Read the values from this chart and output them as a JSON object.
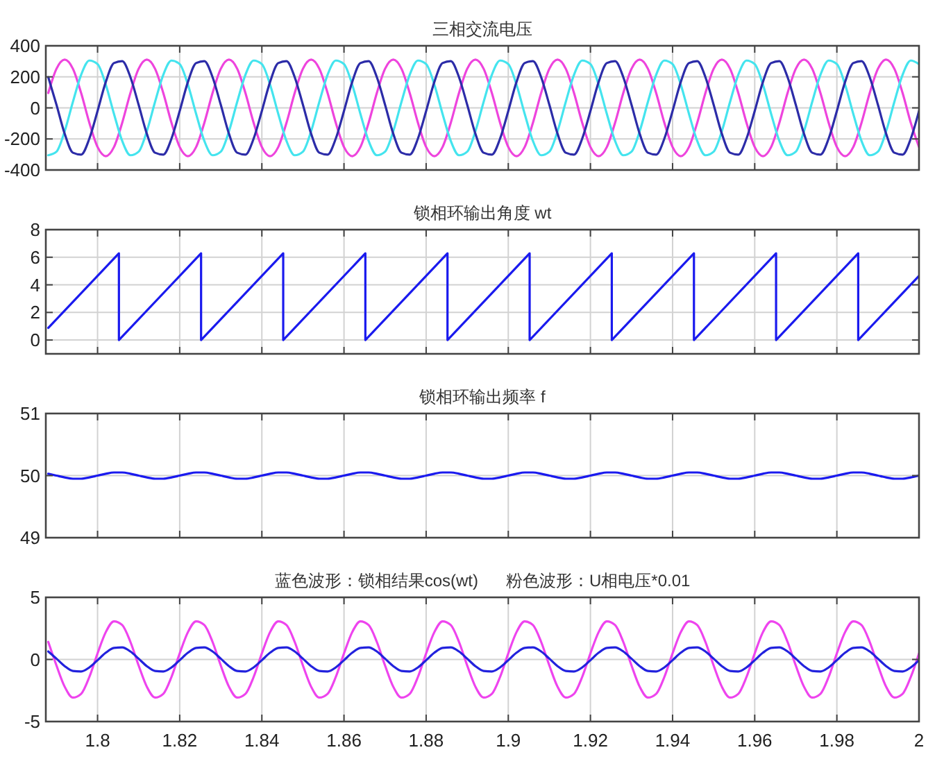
{
  "chart_data": [
    {
      "type": "line",
      "title": "三相交流电压",
      "xlim": [
        1.7874,
        2
      ],
      "xticks": [
        1.8,
        1.82,
        1.84,
        1.86,
        1.88,
        1.9,
        1.92,
        1.94,
        1.96,
        1.98,
        2
      ],
      "ylim": [
        -400,
        400
      ],
      "yticks": [
        -400,
        -200,
        0,
        200,
        400
      ],
      "grid": true,
      "tick_labels": "y",
      "x": [
        1.788,
        1.79,
        1.792,
        1.794,
        1.796,
        1.798,
        1.8,
        1.802,
        1.804,
        1.806,
        1.808,
        1.81,
        1.812,
        1.814,
        1.816,
        1.818,
        1.82,
        1.822,
        1.824,
        1.826,
        1.828,
        1.83,
        1.832,
        1.834,
        1.836,
        1.838,
        1.84,
        1.842,
        1.844,
        1.846,
        1.848,
        1.85,
        1.852,
        1.854,
        1.856,
        1.858,
        1.86,
        1.862,
        1.864,
        1.866,
        1.868,
        1.87,
        1.872,
        1.874,
        1.876,
        1.878,
        1.88,
        1.882,
        1.884,
        1.886,
        1.888,
        1.89,
        1.892,
        1.894,
        1.896,
        1.898,
        1.9,
        1.902,
        1.904,
        1.906,
        1.908,
        1.91,
        1.912,
        1.914,
        1.916,
        1.918,
        1.92,
        1.922,
        1.924,
        1.926,
        1.928,
        1.93,
        1.932,
        1.934,
        1.936,
        1.938,
        1.94,
        1.942,
        1.944,
        1.946,
        1.948,
        1.95,
        1.952,
        1.954,
        1.956,
        1.958,
        1.96,
        1.962,
        1.964,
        1.966,
        1.968,
        1.97,
        1.972,
        1.974,
        1.976,
        1.978,
        1.98,
        1.982,
        1.984,
        1.986,
        1.988,
        1.99,
        1.992,
        1.994,
        1.996,
        1.998,
        2.0
      ],
      "series": [
        {
          "color": "#ee44dd",
          "values": [
            96,
            252,
            311,
            252,
            96,
            -96,
            -252,
            -311,
            -252,
            -96,
            96,
            252,
            311,
            252,
            96,
            -96,
            -252,
            -311,
            -252,
            -96,
            96,
            252,
            311,
            252,
            96,
            -96,
            -252,
            -311,
            -252,
            -96,
            96,
            252,
            311,
            252,
            96,
            -96,
            -252,
            -311,
            -252,
            -96,
            96,
            252,
            311,
            252,
            96,
            -96,
            -252,
            -311,
            -252,
            -96,
            96,
            252,
            311,
            252,
            96,
            -96,
            -252,
            -311,
            -252,
            -96,
            96,
            252,
            311,
            252,
            96,
            -96,
            -252,
            -311,
            -252,
            -96,
            96,
            252,
            311,
            252,
            96,
            -96,
            -252,
            -311,
            -252,
            -96,
            96,
            252,
            311,
            252,
            96,
            -96,
            -252,
            -311,
            -252,
            -96,
            96,
            252,
            311,
            252,
            96,
            -96,
            -252,
            -311,
            -252,
            -96,
            96,
            252,
            311,
            252,
            96,
            -96,
            -252
          ]
        },
        {
          "color": "#44e4ee",
          "values": [
            -305,
            -282,
            -150,
            39,
            213,
            305,
            282,
            150,
            -39,
            -213,
            -305,
            -282,
            -150,
            39,
            213,
            305,
            282,
            150,
            -39,
            -213,
            -305,
            -282,
            -150,
            39,
            213,
            305,
            282,
            150,
            -39,
            -213,
            -305,
            -282,
            -150,
            39,
            213,
            305,
            282,
            150,
            -39,
            -213,
            -305,
            -282,
            -150,
            39,
            213,
            305,
            282,
            150,
            -39,
            -213,
            -305,
            -282,
            -150,
            39,
            213,
            305,
            282,
            150,
            -39,
            -213,
            -305,
            -282,
            -150,
            39,
            213,
            305,
            282,
            150,
            -39,
            -213,
            -305,
            -282,
            -150,
            39,
            213,
            305,
            282,
            150,
            -39,
            -213,
            -305,
            -282,
            -150,
            39,
            213,
            305,
            282,
            150,
            -39,
            -213,
            -305,
            -282,
            -150,
            39,
            213,
            305,
            282,
            150,
            -39,
            -213,
            -305,
            -282,
            -150,
            39,
            213,
            305,
            282
          ]
        },
        {
          "color": "#2c2ca8",
          "values": [
            198,
            20,
            -167,
            -289,
            -301,
            -198,
            -20,
            167,
            289,
            301,
            198,
            20,
            -167,
            -289,
            -301,
            -198,
            -20,
            167,
            289,
            301,
            198,
            20,
            -167,
            -289,
            -301,
            -198,
            -20,
            167,
            289,
            301,
            198,
            20,
            -167,
            -289,
            -301,
            -198,
            -20,
            167,
            289,
            301,
            198,
            20,
            -167,
            -289,
            -301,
            -198,
            -20,
            167,
            289,
            301,
            198,
            20,
            -167,
            -289,
            -301,
            -198,
            -20,
            167,
            289,
            301,
            198,
            20,
            -167,
            -289,
            -301,
            -198,
            -20,
            167,
            289,
            301,
            198,
            20,
            -167,
            -289,
            -301,
            -198,
            -20,
            167,
            289,
            301,
            198,
            20,
            -167,
            -289,
            -301,
            -198,
            -20,
            167,
            289,
            301,
            198,
            20,
            -167,
            -289,
            -301,
            -198,
            -20,
            167,
            289,
            301,
            198,
            20,
            -167,
            -289,
            -301,
            -198,
            -20
          ]
        }
      ]
    },
    {
      "type": "line",
      "title": "锁相环输出角度 wt",
      "xlim": [
        1.7874,
        2
      ],
      "xticks": [
        1.8,
        1.82,
        1.84,
        1.86,
        1.88,
        1.9,
        1.92,
        1.94,
        1.96,
        1.98,
        2
      ],
      "ylim": [
        -1,
        8
      ],
      "yticks": [
        0,
        2,
        4,
        6,
        8
      ],
      "grid": true,
      "tick_labels": "y",
      "series": [
        {
          "color": "#1a1aee",
          "x": [
            1.788,
            1.8052,
            1.8052,
            1.8252,
            1.8252,
            1.8452,
            1.8452,
            1.8652,
            1.8652,
            1.8852,
            1.8852,
            1.9052,
            1.9052,
            1.9252,
            1.9252,
            1.9452,
            1.9452,
            1.9652,
            1.9652,
            1.9852,
            1.9852,
            2.0
          ],
          "values": [
            0.88,
            6.28,
            0,
            6.28,
            0,
            6.28,
            0,
            6.28,
            0,
            6.28,
            0,
            6.28,
            0,
            6.28,
            0,
            6.28,
            0,
            6.28,
            0,
            6.28,
            0,
            4.65
          ]
        }
      ]
    },
    {
      "type": "line",
      "title": "锁相环输出频率 f",
      "xlim": [
        1.7874,
        2
      ],
      "xticks": [
        1.8,
        1.82,
        1.84,
        1.86,
        1.88,
        1.9,
        1.92,
        1.94,
        1.96,
        1.98,
        2
      ],
      "ylim": [
        49,
        51
      ],
      "yticks": [
        49,
        50,
        51
      ],
      "grid": true,
      "tick_labels": "y",
      "x": [
        1.788,
        1.79,
        1.792,
        1.794,
        1.796,
        1.798,
        1.8,
        1.802,
        1.804,
        1.806,
        1.808,
        1.81,
        1.812,
        1.814,
        1.816,
        1.818,
        1.82,
        1.822,
        1.824,
        1.826,
        1.828,
        1.83,
        1.832,
        1.834,
        1.836,
        1.838,
        1.84,
        1.842,
        1.844,
        1.846,
        1.848,
        1.85,
        1.852,
        1.854,
        1.856,
        1.858,
        1.86,
        1.862,
        1.864,
        1.866,
        1.868,
        1.87,
        1.872,
        1.874,
        1.876,
        1.878,
        1.88,
        1.882,
        1.884,
        1.886,
        1.888,
        1.89,
        1.892,
        1.894,
        1.896,
        1.898,
        1.9,
        1.902,
        1.904,
        1.906,
        1.908,
        1.91,
        1.912,
        1.914,
        1.916,
        1.918,
        1.92,
        1.922,
        1.924,
        1.926,
        1.928,
        1.93,
        1.932,
        1.934,
        1.936,
        1.938,
        1.94,
        1.942,
        1.944,
        1.946,
        1.948,
        1.95,
        1.952,
        1.954,
        1.956,
        1.958,
        1.96,
        1.962,
        1.964,
        1.966,
        1.968,
        1.97,
        1.972,
        1.974,
        1.976,
        1.978,
        1.98,
        1.982,
        1.984,
        1.986,
        1.988,
        1.99,
        1.992,
        1.994,
        1.996,
        1.998,
        2.0
      ],
      "series": [
        {
          "color": "#1a1aee",
          "values": [
            50.03,
            50,
            49.97,
            49.95,
            49.95,
            49.97,
            50,
            50.03,
            50.05,
            50.05,
            50.03,
            50,
            49.97,
            49.95,
            49.95,
            49.97,
            50,
            50.03,
            50.05,
            50.05,
            50.03,
            50,
            49.97,
            49.95,
            49.95,
            49.97,
            50,
            50.03,
            50.05,
            50.05,
            50.03,
            50,
            49.97,
            49.95,
            49.95,
            49.97,
            50,
            50.03,
            50.05,
            50.05,
            50.03,
            50,
            49.97,
            49.95,
            49.95,
            49.97,
            50,
            50.03,
            50.05,
            50.05,
            50.03,
            50,
            49.97,
            49.95,
            49.95,
            49.97,
            50,
            50.03,
            50.05,
            50.05,
            50.03,
            50,
            49.97,
            49.95,
            49.95,
            49.97,
            50,
            50.03,
            50.05,
            50.05,
            50.03,
            50,
            49.97,
            49.95,
            49.95,
            49.97,
            50,
            50.03,
            50.05,
            50.05,
            50.03,
            50,
            49.97,
            49.95,
            49.95,
            49.97,
            50,
            50.03,
            50.05,
            50.05,
            50.03,
            50,
            49.97,
            49.95,
            49.95,
            49.97,
            50,
            50.03,
            50.05,
            50.05,
            50.03,
            50,
            49.97,
            49.95,
            49.95,
            49.97,
            50
          ]
        }
      ]
    },
    {
      "type": "line",
      "title": "蓝色波形：锁相结果cos(wt)      粉色波形：U相电压*0.01",
      "xlim": [
        1.7874,
        2
      ],
      "xticks": [
        1.8,
        1.82,
        1.84,
        1.86,
        1.88,
        1.9,
        1.92,
        1.94,
        1.96,
        1.98,
        2
      ],
      "ylim": [
        -5,
        5
      ],
      "yticks": [
        -5,
        0,
        5
      ],
      "grid": true,
      "x": [
        1.788,
        1.79,
        1.792,
        1.794,
        1.796,
        1.798,
        1.8,
        1.802,
        1.804,
        1.806,
        1.808,
        1.81,
        1.812,
        1.814,
        1.816,
        1.818,
        1.82,
        1.822,
        1.824,
        1.826,
        1.828,
        1.83,
        1.832,
        1.834,
        1.836,
        1.838,
        1.84,
        1.842,
        1.844,
        1.846,
        1.848,
        1.85,
        1.852,
        1.854,
        1.856,
        1.858,
        1.86,
        1.862,
        1.864,
        1.866,
        1.868,
        1.87,
        1.872,
        1.874,
        1.876,
        1.878,
        1.88,
        1.882,
        1.884,
        1.886,
        1.888,
        1.89,
        1.892,
        1.894,
        1.896,
        1.898,
        1.9,
        1.902,
        1.904,
        1.906,
        1.908,
        1.91,
        1.912,
        1.914,
        1.916,
        1.918,
        1.92,
        1.922,
        1.924,
        1.926,
        1.928,
        1.93,
        1.932,
        1.934,
        1.936,
        1.938,
        1.94,
        1.942,
        1.944,
        1.946,
        1.948,
        1.95,
        1.952,
        1.954,
        1.956,
        1.958,
        1.96,
        1.962,
        1.964,
        1.966,
        1.968,
        1.97,
        1.972,
        1.974,
        1.976,
        1.978,
        1.98,
        1.982,
        1.984,
        1.986,
        1.988,
        1.99,
        1.992,
        1.994,
        1.996,
        1.998,
        2.0
      ],
      "series": [
        {
          "color": "#ee44ee",
          "values": [
            1.41,
            -0.49,
            -2.2,
            -3.07,
            -2.77,
            -1.41,
            0.49,
            2.2,
            3.07,
            2.77,
            1.41,
            -0.49,
            -2.2,
            -3.07,
            -2.77,
            -1.41,
            0.49,
            2.2,
            3.07,
            2.77,
            1.41,
            -0.49,
            -2.2,
            -3.07,
            -2.77,
            -1.41,
            0.49,
            2.2,
            3.07,
            2.77,
            1.41,
            -0.49,
            -2.2,
            -3.07,
            -2.77,
            -1.41,
            0.49,
            2.2,
            3.07,
            2.77,
            1.41,
            -0.49,
            -2.2,
            -3.07,
            -2.77,
            -1.41,
            0.49,
            2.2,
            3.07,
            2.77,
            1.41,
            -0.49,
            -2.2,
            -3.07,
            -2.77,
            -1.41,
            0.49,
            2.2,
            3.07,
            2.77,
            1.41,
            -0.49,
            -2.2,
            -3.07,
            -2.77,
            -1.41,
            0.49,
            2.2,
            3.07,
            2.77,
            1.41,
            -0.49,
            -2.2,
            -3.07,
            -2.77,
            -1.41,
            0.49,
            2.2,
            3.07,
            2.77,
            1.41,
            -0.49,
            -2.2,
            -3.07,
            -2.77,
            -1.41,
            0.49,
            2.2,
            3.07,
            2.77,
            1.41,
            -0.49,
            -2.2,
            -3.07,
            -2.77,
            -1.41,
            0.49,
            2.2,
            3.07,
            2.77,
            1.41,
            -0.49,
            -2.2,
            -3.07,
            -2.77,
            -1.41,
            0.49
          ]
        },
        {
          "color": "#2222dd",
          "values": [
            0.64,
            0.06,
            -0.54,
            -0.93,
            -0.97,
            -0.64,
            -0.06,
            0.54,
            0.93,
            0.97,
            0.64,
            0.06,
            -0.54,
            -0.93,
            -0.97,
            -0.64,
            -0.06,
            0.54,
            0.93,
            0.97,
            0.64,
            0.06,
            -0.54,
            -0.93,
            -0.97,
            -0.64,
            -0.06,
            0.54,
            0.93,
            0.97,
            0.64,
            0.06,
            -0.54,
            -0.93,
            -0.97,
            -0.64,
            -0.06,
            0.54,
            0.93,
            0.97,
            0.64,
            0.06,
            -0.54,
            -0.93,
            -0.97,
            -0.64,
            -0.06,
            0.54,
            0.93,
            0.97,
            0.64,
            0.06,
            -0.54,
            -0.93,
            -0.97,
            -0.64,
            -0.06,
            0.54,
            0.93,
            0.97,
            0.64,
            0.06,
            -0.54,
            -0.93,
            -0.97,
            -0.64,
            -0.06,
            0.54,
            0.93,
            0.97,
            0.64,
            0.06,
            -0.54,
            -0.93,
            -0.97,
            -0.64,
            -0.06,
            0.54,
            0.93,
            0.97,
            0.64,
            0.06,
            -0.54,
            -0.93,
            -0.97,
            -0.64,
            -0.06,
            0.54,
            0.93,
            0.97,
            0.64,
            0.06,
            -0.54,
            -0.93,
            -0.97,
            -0.64,
            -0.06,
            0.54,
            0.93,
            0.97,
            0.64,
            0.06,
            -0.54,
            -0.93,
            -0.97,
            -0.64,
            -0.06
          ]
        }
      ]
    }
  ]
}
